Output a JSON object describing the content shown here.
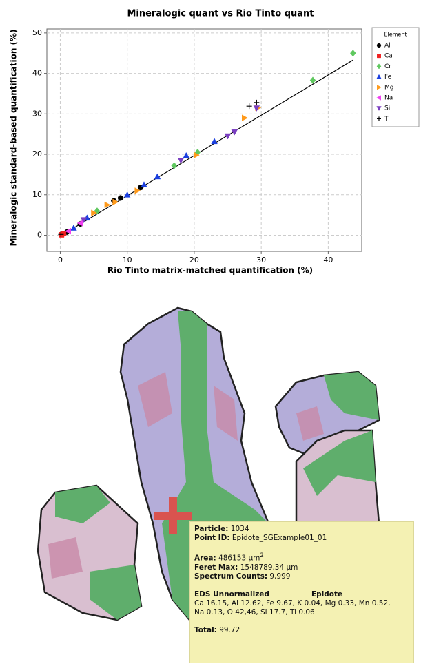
{
  "chart_data": {
    "type": "scatter",
    "title": "Mineralogic quant vs Rio Tinto quant",
    "x_label": "Rio Tinto matrix-matched quantification (%)",
    "y_label": "Mineralogic standard-based quantification (%)",
    "legend_title": "Element",
    "legend": "outside-right",
    "grid": true,
    "xlim": [
      -2,
      45
    ],
    "xticks": [
      0,
      10,
      20,
      30,
      40
    ],
    "ylim": [
      -4,
      51
    ],
    "yticks": [
      0,
      10,
      20,
      30,
      40,
      50
    ],
    "fit_line": {
      "color": "#000000",
      "x": [
        0,
        43.7
      ],
      "y": [
        -0.2,
        43.3
      ]
    },
    "series": [
      {
        "name": "Al",
        "color": "#000000",
        "marker": "circle",
        "x": [
          0.3,
          1,
          3,
          8,
          9,
          12
        ],
        "y": [
          0.3,
          0.8,
          2.8,
          8.5,
          9.2,
          11.8
        ]
      },
      {
        "name": "Ca",
        "color": "#f02020",
        "marker": "square",
        "x": [
          0.2,
          0.5
        ],
        "y": [
          0.1,
          0.4
        ]
      },
      {
        "name": "Cr",
        "color": "#5fc85f",
        "marker": "diamond",
        "x": [
          5.5,
          17,
          20.5,
          37.7,
          43.7
        ],
        "y": [
          6,
          17.2,
          20.5,
          38.3,
          45
        ]
      },
      {
        "name": "Fe",
        "color": "#1a3fe0",
        "marker": "triangle-up",
        "x": [
          2,
          4,
          10,
          12.5,
          14.5,
          18.8,
          23
        ],
        "y": [
          1.8,
          4.3,
          10,
          12.5,
          14.5,
          19.7,
          23.2
        ]
      },
      {
        "name": "Mg",
        "color": "#ff9a1a",
        "marker": "triangle-right",
        "x": [
          5,
          7,
          8.2,
          11.5,
          20.3,
          27.5,
          29.5
        ],
        "y": [
          5.5,
          7.5,
          8.2,
          11,
          19.8,
          29,
          31.5
        ]
      },
      {
        "name": "Na",
        "color": "#f040f0",
        "marker": "triangle-left",
        "x": [
          1.2,
          3
        ],
        "y": [
          1,
          3
        ]
      },
      {
        "name": "Si",
        "color": "#7a3fc0",
        "marker": "triangle-down",
        "x": [
          3.5,
          18,
          25,
          26,
          29.3
        ],
        "y": [
          3.8,
          18.5,
          24.5,
          25.5,
          31.4
        ]
      },
      {
        "name": "Ti",
        "color": "#000000",
        "marker": "plus",
        "x": [
          0.1,
          28.2,
          29.3
        ],
        "y": [
          0.2,
          31.9,
          32.8
        ]
      }
    ]
  },
  "tooltip": {
    "particle_label": "Particle:",
    "particle": "1034",
    "point_id_label": "Point ID:",
    "point_id": "Epidote_SGExample01_01",
    "area_label": "Area:",
    "area": "486153 μm",
    "area_exponent": "2",
    "feret_label": "Feret Max:",
    "feret": "1548789.34 μm",
    "counts_label": "Spectrum Counts:",
    "counts": "9,999",
    "eds_label": "EDS Unnormalized",
    "mineral": "Epidote",
    "eds_line1": "Ca 16.15, Al 12.62, Fe 9.67, K 0.04, Mg 0.33, Mn 0.52,",
    "eds_line2": "Na 0.13, O 42,46, Si 17.7, Ti 0.06",
    "total_label": "Total:",
    "total": "99.72"
  }
}
